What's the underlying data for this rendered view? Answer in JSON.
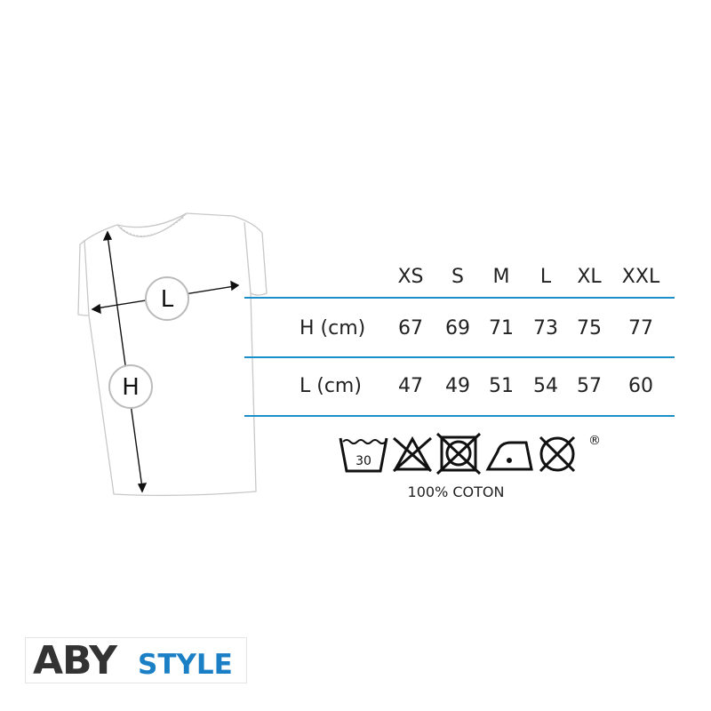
{
  "sizes": [
    "XS",
    "S",
    "M",
    "L",
    "XL",
    "XXL"
  ],
  "rows": [
    {
      "label": "H (cm)",
      "values": [
        "67",
        "69",
        "71",
        "73",
        "75",
        "77"
      ]
    },
    {
      "label": "L (cm)",
      "values": [
        "47",
        "49",
        "51",
        "54",
        "57",
        "60"
      ]
    }
  ],
  "diagram": {
    "width_marker": "L",
    "height_marker": "H"
  },
  "care": {
    "icons": [
      "wash-30-icon",
      "no-bleach-icon",
      "no-tumble-dry-icon",
      "iron-low-icon",
      "no-dry-clean-icon"
    ],
    "wash_temp": "30",
    "registered": "®",
    "material": "100% COTON"
  },
  "brand": {
    "part1": "ABY",
    "part2": "STYLE"
  },
  "colors": {
    "accent": "#1a8fc8",
    "logo_blue": "#1a7fc4",
    "logo_dark": "#333333"
  }
}
